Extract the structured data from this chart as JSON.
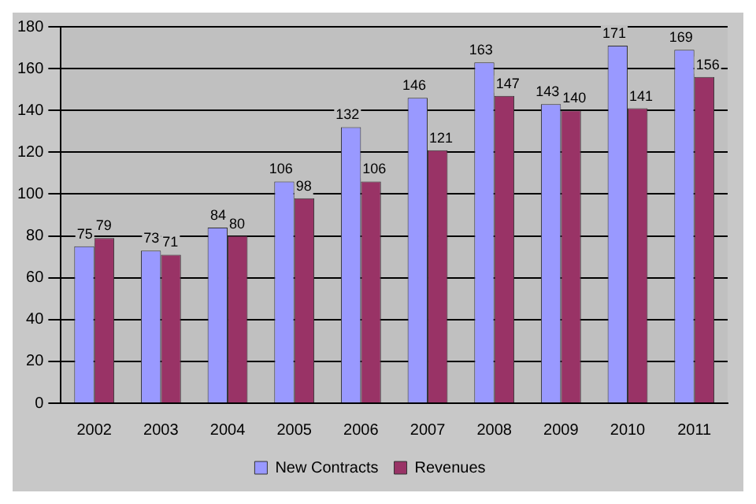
{
  "chart_data": {
    "type": "bar",
    "categories": [
      "2002",
      "2003",
      "2004",
      "2005",
      "2006",
      "2007",
      "2008",
      "2009",
      "2010",
      "2011"
    ],
    "series": [
      {
        "name": "New Contracts",
        "color": "#9999ff",
        "values": [
          75,
          73,
          84,
          106,
          132,
          146,
          163,
          143,
          171,
          169
        ]
      },
      {
        "name": "Revenues",
        "color": "#993366",
        "values": [
          79,
          71,
          80,
          98,
          106,
          121,
          147,
          140,
          141,
          156
        ]
      }
    ],
    "ylim": [
      0,
      180
    ],
    "yticks": [
      0,
      20,
      40,
      60,
      80,
      100,
      120,
      140,
      160,
      180
    ],
    "grid": "y",
    "legend": "bottom",
    "data_labels": true
  }
}
